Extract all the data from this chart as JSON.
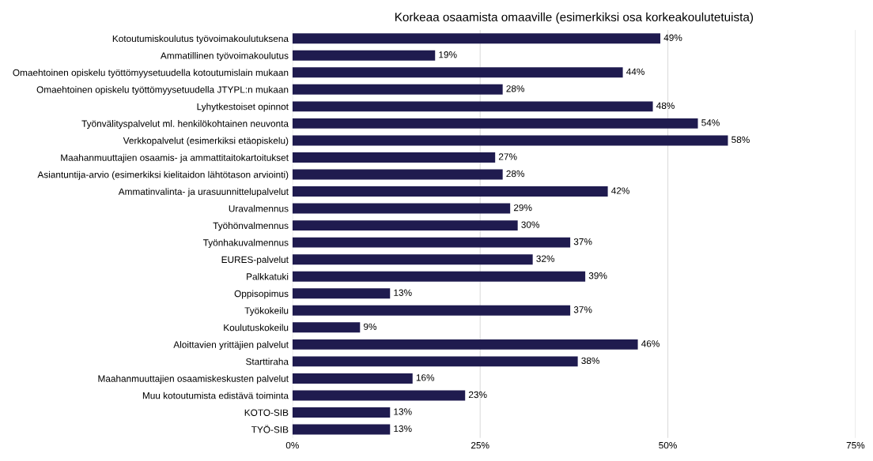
{
  "chart_data": {
    "type": "bar",
    "orientation": "horizontal",
    "title": "Korkeaa osaamista omaaville (esimerkiksi osa korkeakoulutetuista)",
    "categories": [
      "Kotoutumiskoulutus työvoimakoulutuksena",
      "Ammatillinen työvoimakoulutus",
      "Omaehtoinen opiskelu työttömyysetuudella kotoutumislain mukaan",
      "Omaehtoinen opiskelu työttömyysetuudella JTYPL:n mukaan",
      "Lyhytkestoiset opinnot",
      "Työnvälityspalvelut ml. henkilökohtainen neuvonta",
      "Verkkopalvelut (esimerkiksi etäopiskelu)",
      "Maahanmuuttajien osaamis- ja ammattitaitokartoitukset",
      "Asiantuntija-arvio (esimerkiksi kielitaidon lähtötason arviointi)",
      "Ammatinvalinta- ja urasuunnittelupalvelut",
      "Uravalmennus",
      "Työhönvalmennus",
      "Työnhakuvalmennus",
      "EURES-palvelut",
      "Palkkatuki",
      "Oppisopimus",
      "Työkokeilu",
      "Koulutuskokeilu",
      "Aloittavien yrittäjien palvelut",
      "Starttiraha",
      "Maahanmuuttajien osaamiskeskusten palvelut",
      "Muu kotoutumista edistävä toiminta",
      "KOTO-SIB",
      "TYÖ-SIB"
    ],
    "values": [
      49,
      19,
      44,
      28,
      48,
      54,
      58,
      27,
      28,
      42,
      29,
      30,
      37,
      32,
      39,
      13,
      37,
      9,
      46,
      38,
      16,
      23,
      13,
      13
    ],
    "value_labels": [
      "49%",
      "19%",
      "44%",
      "28%",
      "48%",
      "54%",
      "58%",
      "27%",
      "28%",
      "42%",
      "29%",
      "30%",
      "37%",
      "32%",
      "39%",
      "13%",
      "37%",
      "9%",
      "46%",
      "38%",
      "16%",
      "23%",
      "13%",
      "13%"
    ],
    "color": "#1f1b4f",
    "xlim": [
      0,
      75
    ],
    "xticks": [
      {
        "value": 0,
        "label": "0%"
      },
      {
        "value": 25,
        "label": "25%"
      },
      {
        "value": 50,
        "label": "50%"
      },
      {
        "value": 75,
        "label": "75%"
      }
    ],
    "grid": "x"
  }
}
